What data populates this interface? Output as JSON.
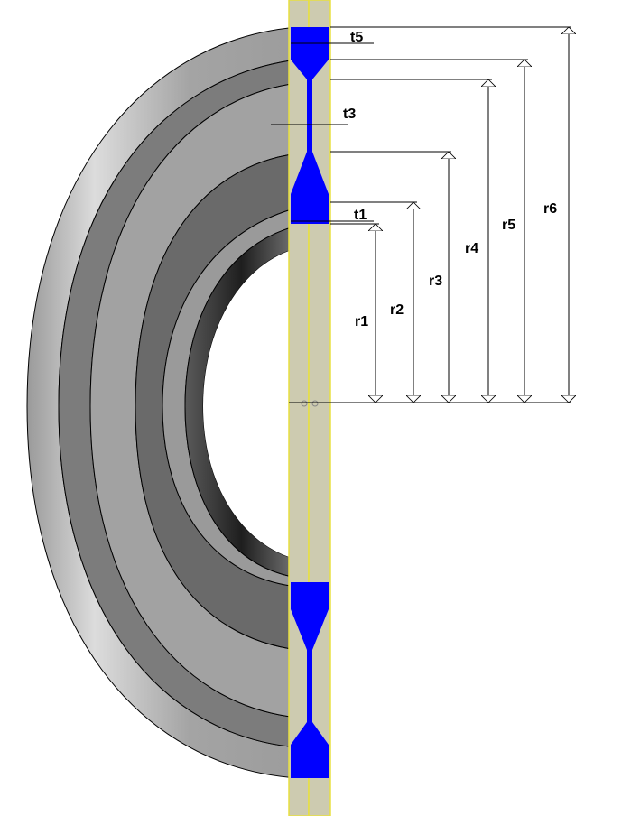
{
  "colors": {
    "background": "#ffffff",
    "disc_outer": "#a8a8a8",
    "disc_mid": "#5e5e5e",
    "disc_band": "#8a8a8a",
    "bore": "#2a2a2a",
    "section_fill": "#0000ff",
    "plane_fill": "#cdcbb0",
    "plane_edge": "#e8e040",
    "dim_line": "#000000"
  },
  "labels": {
    "t5": "t5",
    "t3": "t3",
    "t1": "t1",
    "r1": "r1",
    "r2": "r2",
    "r3": "r3",
    "r4": "r4",
    "r5": "r5",
    "r6": "r6"
  }
}
